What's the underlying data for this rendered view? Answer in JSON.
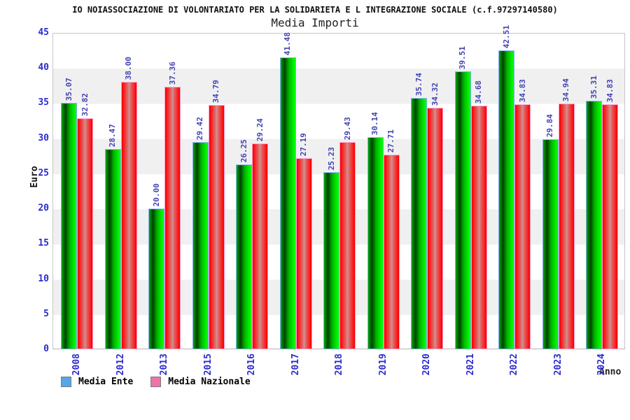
{
  "header": {
    "title": "IO NOIASSOCIAZIONE DI VOLONTARIATO PER LA SOLIDARIETA E L INTEGRAZIONE SOCIALE (c.f.97297140580)",
    "subtitle": "Media Importi"
  },
  "chart_data": {
    "type": "bar",
    "title": "Media Importi",
    "xlabel": "Anno",
    "ylabel": "Euro",
    "ylim": [
      0,
      45
    ],
    "yticks": [
      0,
      5,
      10,
      15,
      20,
      25,
      30,
      35,
      40,
      45
    ],
    "grid": "alternating horizontal bands every 5 units",
    "legend_position": "bottom-left",
    "categories": [
      "2008",
      "2012",
      "2013",
      "2015",
      "2016",
      "2017",
      "2018",
      "2019",
      "2020",
      "2021",
      "2022",
      "2023",
      "2024"
    ],
    "series": [
      {
        "name": "Media Ente",
        "bar_color": "green",
        "values": [
          35.07,
          28.47,
          20.0,
          29.42,
          26.25,
          41.48,
          25.23,
          30.14,
          35.74,
          39.51,
          42.51,
          29.84,
          35.31
        ]
      },
      {
        "name": "Media Nazionale",
        "bar_color": "red",
        "values": [
          32.82,
          38.0,
          37.36,
          34.79,
          29.24,
          27.19,
          29.43,
          27.71,
          34.32,
          34.68,
          34.83,
          34.94,
          34.83
        ]
      }
    ],
    "value_label_color": "#4343b4",
    "tick_label_color": "#2b2bd0"
  },
  "legend": {
    "items": [
      {
        "label": "Media Ente",
        "swatch": "#55a7ea"
      },
      {
        "label": "Media Nazionale",
        "swatch": "#ef72aa"
      }
    ]
  }
}
